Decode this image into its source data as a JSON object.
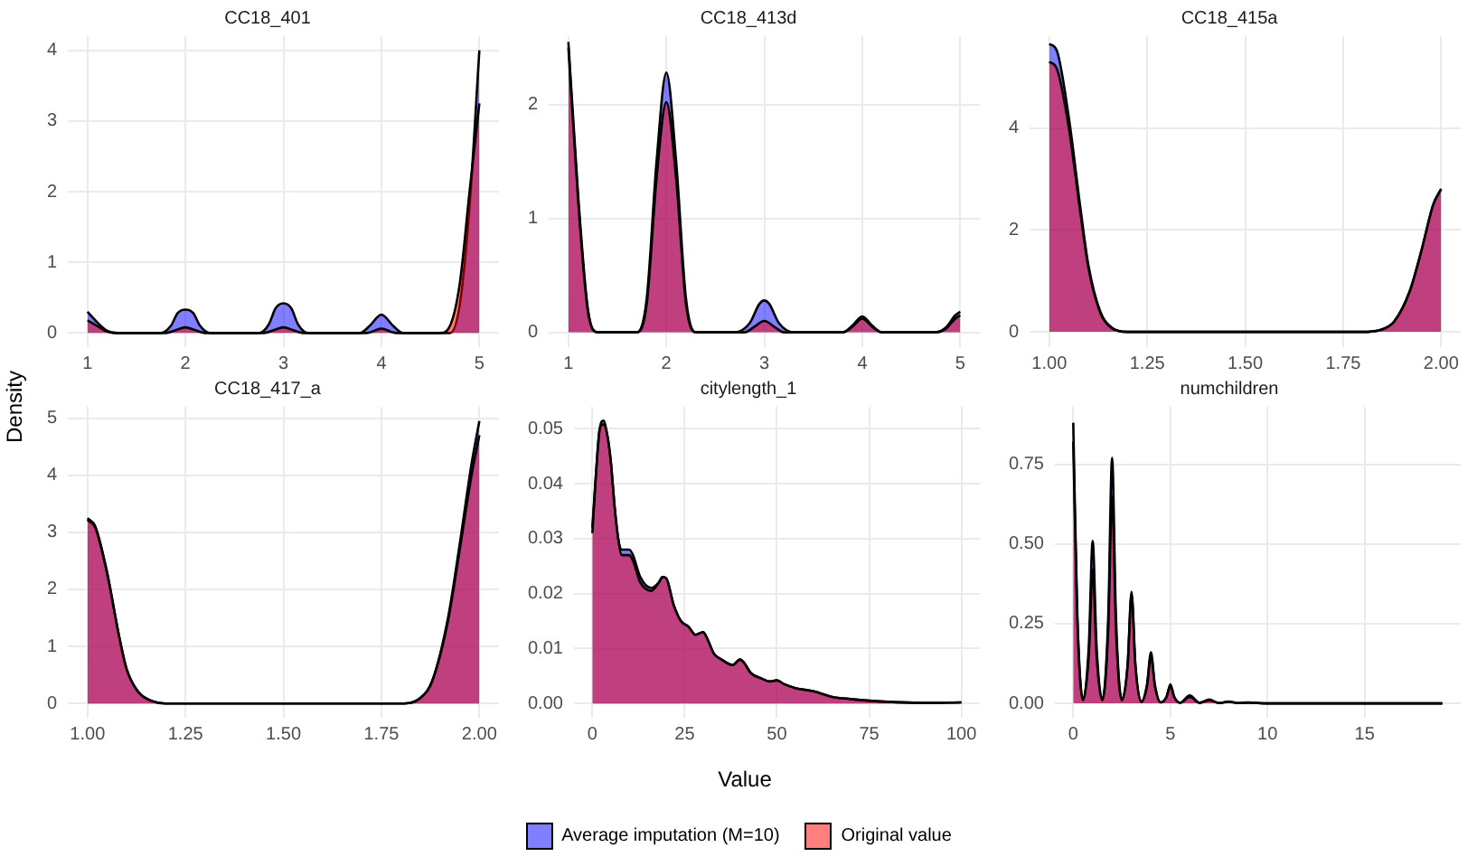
{
  "chart_data": [
    {
      "type": "area",
      "title": "CC18_401",
      "ylabel": "Density",
      "legend": "bottom",
      "xlim": [
        0.8,
        5.2
      ],
      "xticks": [
        1,
        2,
        3,
        4,
        5
      ],
      "ylim": [
        -0.2,
        4.2
      ],
      "yticks": [
        0,
        1,
        2,
        3,
        4
      ],
      "grid": true,
      "series": [
        {
          "name": "Average imputation (M=10)",
          "color": "#0000ff",
          "x": [
            1,
            1.1,
            1.2,
            1.3,
            1.75,
            1.85,
            1.92,
            2,
            2.08,
            2.15,
            2.25,
            2.75,
            2.85,
            2.92,
            3,
            3.08,
            3.15,
            3.25,
            3.78,
            3.88,
            4,
            4.12,
            4.22,
            4.7,
            4.8,
            4.9,
            5
          ],
          "values": [
            0.3,
            0.15,
            0.03,
            0,
            0,
            0.1,
            0.28,
            0.33,
            0.28,
            0.1,
            0,
            0,
            0.12,
            0.35,
            0.42,
            0.35,
            0.12,
            0,
            0,
            0.1,
            0.26,
            0.1,
            0,
            0,
            0.4,
            1.8,
            4.0
          ]
        },
        {
          "name": "Original value",
          "color": "#ff0000",
          "x": [
            1,
            1.1,
            1.2,
            1.3,
            1.8,
            1.9,
            2,
            2.1,
            2.2,
            2.8,
            2.9,
            3,
            3.1,
            3.2,
            3.85,
            4,
            4.15,
            4.6,
            4.7,
            4.8,
            4.9,
            5
          ],
          "values": [
            0.18,
            0.1,
            0.02,
            0,
            0,
            0.04,
            0.08,
            0.04,
            0,
            0,
            0.04,
            0.08,
            0.04,
            0,
            0,
            0.06,
            0,
            0,
            0.1,
            0.7,
            2.0,
            3.25
          ]
        }
      ]
    },
    {
      "type": "area",
      "title": "CC18_413d",
      "xlim": [
        0.8,
        5.2
      ],
      "xticks": [
        1,
        2,
        3,
        4,
        5
      ],
      "ylim": [
        -0.13,
        2.6
      ],
      "yticks": [
        0,
        1,
        2
      ],
      "grid": true,
      "series": [
        {
          "color": "#0000ff",
          "x": [
            1,
            1.1,
            1.2,
            1.3,
            1.7,
            1.8,
            1.9,
            2,
            2.1,
            2.2,
            2.3,
            2.7,
            2.85,
            2.95,
            3,
            3.05,
            3.15,
            3.3,
            3.8,
            3.9,
            4,
            4.1,
            4.2,
            4.75,
            4.85,
            4.95,
            5
          ],
          "values": [
            2.55,
            1.2,
            0.2,
            0,
            0,
            0.3,
            1.5,
            2.28,
            1.5,
            0.3,
            0,
            0,
            0.08,
            0.25,
            0.28,
            0.25,
            0.08,
            0,
            0,
            0.06,
            0.14,
            0.06,
            0,
            0,
            0.04,
            0.15,
            0.18
          ]
        },
        {
          "color": "#ff0000",
          "x": [
            1,
            1.1,
            1.2,
            1.3,
            1.7,
            1.8,
            1.9,
            2,
            2.1,
            2.2,
            2.3,
            2.8,
            2.9,
            3,
            3.1,
            3.2,
            3.8,
            3.9,
            4,
            4.1,
            4.2,
            4.75,
            4.85,
            4.95,
            5
          ],
          "values": [
            2.5,
            1.15,
            0.18,
            0,
            0,
            0.25,
            1.35,
            2.02,
            1.35,
            0.25,
            0,
            0,
            0.05,
            0.1,
            0.05,
            0,
            0,
            0.05,
            0.12,
            0.05,
            0,
            0,
            0.03,
            0.12,
            0.15
          ]
        }
      ]
    },
    {
      "type": "area",
      "title": "CC18_415a",
      "xlim": [
        0.95,
        2.05
      ],
      "xticks": [
        {
          "value": 1,
          "label": "1.00"
        },
        {
          "value": 1.25,
          "label": "1.25"
        },
        {
          "value": 1.5,
          "label": "1.50"
        },
        {
          "value": 1.75,
          "label": "1.75"
        },
        {
          "value": 2,
          "label": "2.00"
        }
      ],
      "ylim": [
        -0.3,
        5.8
      ],
      "yticks": [
        0,
        2,
        4
      ],
      "grid": true,
      "series": [
        {
          "color": "#0000ff",
          "x": [
            1,
            1.02,
            1.05,
            1.08,
            1.1,
            1.13,
            1.16,
            1.2,
            1.8,
            1.85,
            1.88,
            1.92,
            1.95,
            1.98,
            2
          ],
          "values": [
            5.65,
            5.5,
            4.2,
            2.4,
            1.3,
            0.4,
            0.08,
            0,
            0,
            0.05,
            0.2,
            0.8,
            1.6,
            2.5,
            2.8
          ]
        },
        {
          "color": "#ff0000",
          "x": [
            1,
            1.02,
            1.05,
            1.08,
            1.1,
            1.13,
            1.16,
            1.2,
            1.8,
            1.85,
            1.88,
            1.92,
            1.95,
            1.98,
            2
          ],
          "values": [
            5.3,
            5.15,
            4.0,
            2.3,
            1.25,
            0.38,
            0.07,
            0,
            0,
            0.05,
            0.2,
            0.8,
            1.6,
            2.5,
            2.8
          ]
        }
      ]
    },
    {
      "type": "area",
      "title": "CC18_417_a",
      "xlim": [
        0.95,
        2.05
      ],
      "xticks": [
        {
          "value": 1,
          "label": "1.00"
        },
        {
          "value": 1.25,
          "label": "1.25"
        },
        {
          "value": 1.5,
          "label": "1.50"
        },
        {
          "value": 1.75,
          "label": "1.75"
        },
        {
          "value": 2,
          "label": "2.00"
        }
      ],
      "ylim": [
        -0.25,
        5.2
      ],
      "yticks": [
        0,
        1,
        2,
        3,
        4,
        5
      ],
      "grid": true,
      "series": [
        {
          "color": "#0000ff",
          "x": [
            1,
            1.02,
            1.05,
            1.08,
            1.1,
            1.13,
            1.17,
            1.2,
            1.8,
            1.85,
            1.88,
            1.92,
            1.95,
            1.98,
            2
          ],
          "values": [
            3.25,
            3.1,
            2.3,
            1.2,
            0.6,
            0.2,
            0.03,
            0,
            0,
            0.1,
            0.4,
            1.5,
            2.8,
            4.2,
            4.95
          ]
        },
        {
          "color": "#ff0000",
          "x": [
            1,
            1.02,
            1.05,
            1.08,
            1.1,
            1.13,
            1.17,
            1.2,
            1.8,
            1.85,
            1.88,
            1.92,
            1.95,
            1.98,
            2
          ],
          "values": [
            3.22,
            3.08,
            2.28,
            1.2,
            0.6,
            0.2,
            0.03,
            0,
            0,
            0.1,
            0.4,
            1.45,
            2.7,
            4.0,
            4.7
          ]
        }
      ]
    },
    {
      "type": "area",
      "title": "citylength_1",
      "xlabel": "Value",
      "xlim": [
        -5,
        105
      ],
      "xticks": [
        0,
        25,
        50,
        75,
        100
      ],
      "ylim": [
        -0.0026,
        0.054
      ],
      "yticks": [
        {
          "value": 0,
          "label": "0.00"
        },
        {
          "value": 0.01,
          "label": "0.01"
        },
        {
          "value": 0.02,
          "label": "0.02"
        },
        {
          "value": 0.03,
          "label": "0.03"
        },
        {
          "value": 0.04,
          "label": "0.04"
        },
        {
          "value": 0.05,
          "label": "0.05"
        }
      ],
      "grid": true,
      "series": [
        {
          "color": "#0000ff",
          "x": [
            0,
            1,
            2,
            3,
            4,
            5,
            6,
            7,
            8,
            10,
            11,
            13,
            16,
            18,
            19,
            20,
            22,
            24,
            26,
            28,
            30,
            31,
            33,
            35,
            38,
            40,
            41,
            43,
            46,
            48,
            50,
            52,
            55,
            60,
            65,
            70,
            75,
            80,
            90,
            100
          ],
          "values": [
            0.032,
            0.042,
            0.05,
            0.0515,
            0.049,
            0.044,
            0.036,
            0.03,
            0.028,
            0.028,
            0.027,
            0.023,
            0.021,
            0.022,
            0.023,
            0.0228,
            0.018,
            0.015,
            0.014,
            0.0125,
            0.013,
            0.012,
            0.009,
            0.008,
            0.007,
            0.008,
            0.0075,
            0.0055,
            0.0045,
            0.004,
            0.0042,
            0.0035,
            0.0028,
            0.0022,
            0.0012,
            0.0008,
            0.0005,
            0.0003,
            0.0001,
            0.0002
          ]
        },
        {
          "color": "#ff0000",
          "x": [
            0,
            1,
            2,
            3,
            4,
            5,
            6,
            7,
            8,
            10,
            11,
            13,
            16,
            18,
            19,
            20,
            22,
            24,
            26,
            28,
            30,
            31,
            33,
            35,
            38,
            40,
            41,
            43,
            46,
            48,
            50,
            52,
            55,
            60,
            65,
            70,
            75,
            80,
            90,
            100
          ],
          "values": [
            0.031,
            0.042,
            0.05,
            0.0508,
            0.049,
            0.044,
            0.036,
            0.03,
            0.027,
            0.027,
            0.026,
            0.022,
            0.0205,
            0.022,
            0.023,
            0.0228,
            0.018,
            0.015,
            0.014,
            0.0125,
            0.013,
            0.012,
            0.009,
            0.008,
            0.007,
            0.008,
            0.0075,
            0.0055,
            0.0045,
            0.004,
            0.0042,
            0.0035,
            0.0028,
            0.0022,
            0.0012,
            0.0008,
            0.0005,
            0.0003,
            0.0001,
            0.0002
          ]
        }
      ]
    },
    {
      "type": "area",
      "title": "numchildren",
      "xlim": [
        -0.95,
        19.95
      ],
      "xticks": [
        0,
        5,
        10,
        15
      ],
      "ylim": [
        -0.045,
        0.93
      ],
      "yticks": [
        {
          "value": 0,
          "label": "0.00"
        },
        {
          "value": 0.25,
          "label": "0.25"
        },
        {
          "value": 0.5,
          "label": "0.50"
        },
        {
          "value": 0.75,
          "label": "0.75"
        }
      ],
      "grid": true,
      "series": [
        {
          "color": "#0000ff",
          "x": [
            0,
            0.2,
            0.5,
            0.8,
            1,
            1.2,
            1.5,
            1.8,
            2,
            2.2,
            2.5,
            2.8,
            3,
            3.2,
            3.5,
            3.8,
            4,
            4.2,
            4.5,
            4.8,
            5,
            5.2,
            5.5,
            6,
            6.5,
            7,
            7.5,
            8,
            8.5,
            9,
            10,
            19
          ],
          "values": [
            0.88,
            0.3,
            0.01,
            0.18,
            0.51,
            0.18,
            0.01,
            0.27,
            0.77,
            0.27,
            0.01,
            0.12,
            0.35,
            0.12,
            0.005,
            0.06,
            0.16,
            0.06,
            0.003,
            0.02,
            0.06,
            0.02,
            0.002,
            0.025,
            0.002,
            0.012,
            0.001,
            0.006,
            0.001,
            0.003,
            0,
            0
          ]
        },
        {
          "color": "#ff0000",
          "x": [
            0,
            0.2,
            0.5,
            0.8,
            1,
            1.2,
            1.5,
            1.8,
            2,
            2.2,
            2.5,
            2.8,
            3,
            3.2,
            3.5,
            3.8,
            4,
            4.2,
            4.5,
            4.8,
            5,
            5.2,
            5.5,
            6,
            6.5,
            7,
            7.5,
            8,
            8.5,
            9,
            10,
            19
          ],
          "values": [
            0.82,
            0.28,
            0.01,
            0.15,
            0.42,
            0.15,
            0.01,
            0.23,
            0.65,
            0.23,
            0.01,
            0.12,
            0.34,
            0.12,
            0.005,
            0.055,
            0.15,
            0.055,
            0.003,
            0.02,
            0.055,
            0.02,
            0.002,
            0.02,
            0.002,
            0.01,
            0.001,
            0.005,
            0.001,
            0.002,
            0,
            0
          ]
        }
      ]
    }
  ]
}
